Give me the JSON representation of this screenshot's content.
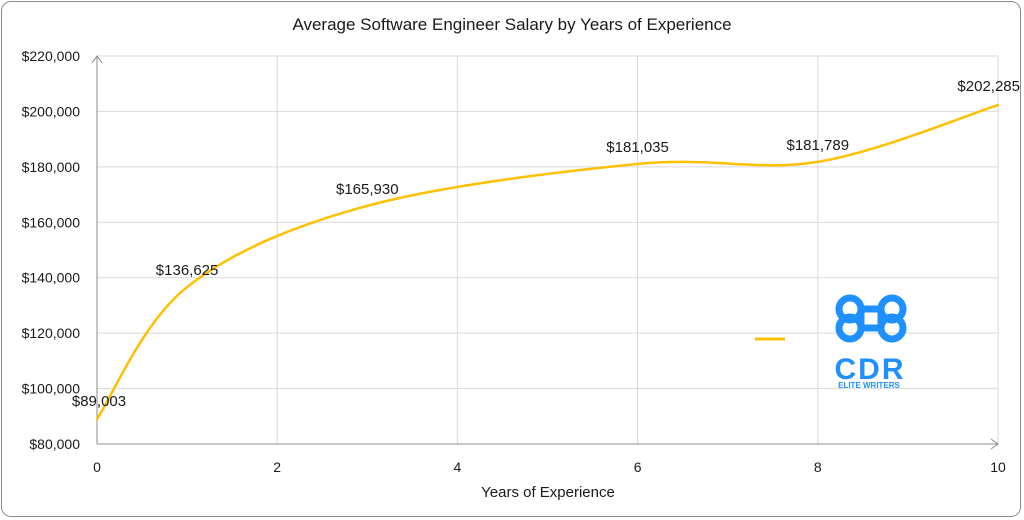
{
  "chart_data": {
    "type": "line",
    "title": "Average Software Engineer Salary by Years of Experience",
    "xlabel": "Years of Experience",
    "ylabel": "",
    "xlim": [
      0,
      10
    ],
    "ylim": [
      80000,
      220000
    ],
    "x_ticks": [
      "0",
      "2",
      "4",
      "6",
      "8",
      "10"
    ],
    "x_tick_values": [
      0,
      2,
      4,
      6,
      8,
      10
    ],
    "y_ticks": [
      "$80,000",
      "$100,000",
      "$120,000",
      "$140,000",
      "$160,000",
      "$180,000",
      "$200,000",
      "$220,000"
    ],
    "y_tick_values": [
      80000,
      100000,
      120000,
      140000,
      160000,
      180000,
      200000,
      220000
    ],
    "grid": true,
    "smooth": true,
    "series": [
      {
        "x": [
          0,
          1,
          3,
          6,
          8,
          10
        ],
        "values": [
          89003,
          136625,
          165930,
          181035,
          181789,
          202285
        ],
        "labels": [
          "$89,003",
          "$136,625",
          "$165,930",
          "$181,035",
          "$181,789",
          "$202,285"
        ],
        "color": "#FFC000"
      }
    ],
    "legend": "right"
  },
  "logo": {
    "text": "CDR",
    "subtext": "ELITE WRITERS",
    "color": "#1E90FF"
  },
  "colors": {
    "line": "#FFC000",
    "grid": "#d9d9d9",
    "axis": "#8c8c8c",
    "logo": "#1E90FF"
  }
}
